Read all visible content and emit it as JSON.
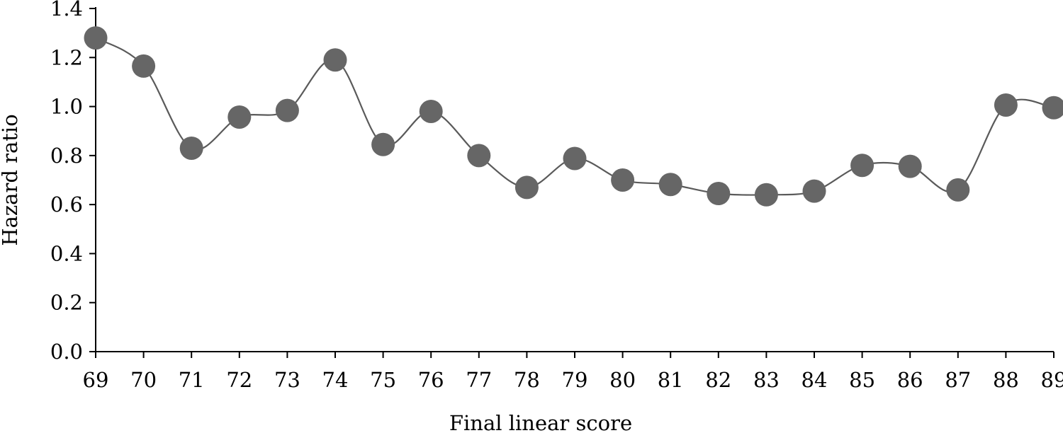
{
  "chart_data": {
    "type": "line",
    "title": "",
    "xlabel": "Final linear score",
    "ylabel": "Hazard ratio",
    "x": [
      69,
      70,
      71,
      72,
      73,
      74,
      75,
      76,
      77,
      78,
      79,
      80,
      81,
      82,
      83,
      84,
      85,
      86,
      87,
      88,
      89
    ],
    "x_tick_labels": [
      "69",
      "70",
      "71",
      "72",
      "73",
      "74",
      "75",
      "76",
      "77",
      "78",
      "79",
      "80",
      "81",
      "82",
      "83",
      "84",
      "85",
      "86",
      "87",
      "88",
      "89"
    ],
    "y_tick_labels": [
      "0.0",
      "0.2",
      "0.4",
      "0.6",
      "0.8",
      "1.0",
      "1.2",
      "1.4"
    ],
    "y_ticks": [
      0.0,
      0.2,
      0.4,
      0.6,
      0.8,
      1.0,
      1.2,
      1.4
    ],
    "xlim": [
      69,
      89
    ],
    "ylim": [
      0,
      1.4
    ],
    "grid": false,
    "legend": "none",
    "smooth": true,
    "series": [
      {
        "values": [
          1.28,
          1.165,
          0.83,
          0.957,
          0.984,
          1.19,
          0.845,
          0.98,
          0.8,
          0.67,
          0.788,
          0.7,
          0.682,
          0.645,
          0.64,
          0.655,
          0.76,
          0.756,
          0.66,
          1.006,
          0.995
        ],
        "color": "#666666",
        "line_color": "#5a5a5a"
      }
    ]
  }
}
